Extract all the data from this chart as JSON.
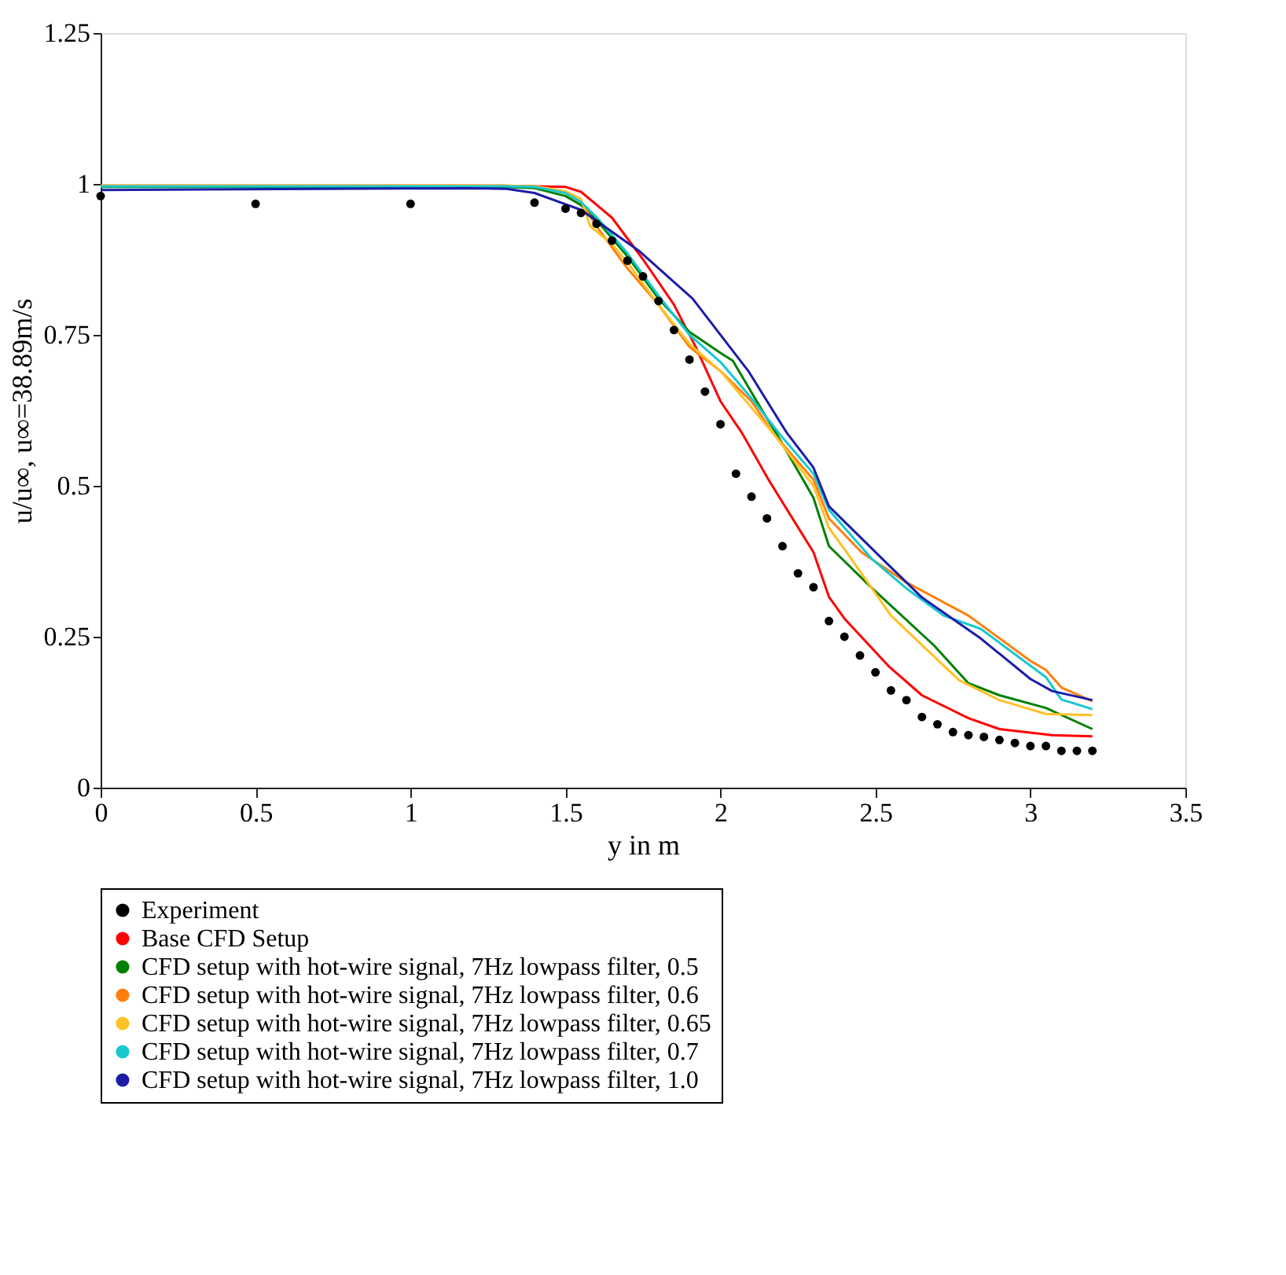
{
  "chart_data": {
    "type": "line",
    "xlabel": "y in m",
    "ylabel": "u/u∞, u∞=38.89m/s",
    "xlim": [
      0,
      3.5
    ],
    "xticks": [
      0,
      0.5,
      1,
      1.5,
      2,
      2.5,
      3,
      3.5
    ],
    "ylim": [
      0,
      1.25
    ],
    "yticks": [
      0,
      0.25,
      0.5,
      0.75,
      1,
      1.25
    ],
    "grid": false,
    "legend": "bottom",
    "line_style": "solid",
    "series": [
      {
        "name": "Experiment",
        "type": "scatter",
        "marker": "circle",
        "color": "#000000",
        "x": [
          0,
          0.5,
          1,
          1.4,
          1.5,
          1.55,
          1.6,
          1.65,
          1.7,
          1.75,
          1.8,
          1.85,
          1.9,
          1.95,
          2.0,
          2.05,
          2.1,
          2.15,
          2.2,
          2.25,
          2.3,
          2.35,
          2.4,
          2.45,
          2.5,
          2.55,
          2.6,
          2.65,
          2.7,
          2.75,
          2.8,
          2.85,
          2.9,
          2.95,
          3.0,
          3.05,
          3.1,
          3.15,
          3.2
        ],
        "values": [
          0.98,
          0.967,
          0.967,
          0.969,
          0.959,
          0.952,
          0.934,
          0.906,
          0.873,
          0.847,
          0.806,
          0.758,
          0.709,
          0.656,
          0.602,
          0.52,
          0.482,
          0.446,
          0.4,
          0.355,
          0.332,
          0.276,
          0.25,
          0.219,
          0.191,
          0.161,
          0.145,
          0.117,
          0.105,
          0.092,
          0.087,
          0.084,
          0.079,
          0.074,
          0.069,
          0.069,
          0.061,
          0.061,
          0.061
        ]
      },
      {
        "name": "Base CFD Setup",
        "color": "#ff0000",
        "x": [
          0,
          1.3,
          1.5,
          1.55,
          1.65,
          1.75,
          1.85,
          1.92,
          2.0,
          2.07,
          2.155,
          2.3,
          2.35,
          2.4,
          2.545,
          2.65,
          2.8,
          2.9,
          3.07,
          3.2
        ],
        "values": [
          0.997,
          0.997,
          0.995,
          0.987,
          0.944,
          0.875,
          0.8,
          0.73,
          0.64,
          0.587,
          0.51,
          0.39,
          0.316,
          0.28,
          0.2,
          0.153,
          0.115,
          0.097,
          0.087,
          0.085
        ]
      },
      {
        "name": "CFD setup with hot-wire signal, 7Hz lowpass filter, 0.5",
        "color": "#008000",
        "x": [
          0,
          1.3,
          1.4,
          1.5,
          1.55,
          1.6,
          1.7,
          1.8,
          1.9,
          2.0,
          2.04,
          2.14,
          2.18,
          2.3,
          2.35,
          2.4,
          2.49,
          2.69,
          2.8,
          2.9,
          3.05,
          3.2
        ],
        "values": [
          0.995,
          0.995,
          0.993,
          0.98,
          0.965,
          0.94,
          0.88,
          0.81,
          0.755,
          0.72,
          0.707,
          0.62,
          0.587,
          0.48,
          0.4,
          0.375,
          0.33,
          0.235,
          0.173,
          0.153,
          0.132,
          0.097
        ]
      },
      {
        "name": "CFD setup with hot-wire signal, 7Hz lowpass filter, 0.6",
        "color": "#ff7f0e",
        "x": [
          0,
          1.3,
          1.4,
          1.5,
          1.55,
          1.6,
          1.7,
          1.8,
          1.9,
          2.0,
          2.1,
          2.17,
          2.3,
          2.35,
          2.455,
          2.6,
          2.8,
          3.0,
          3.05,
          3.1,
          3.2
        ],
        "values": [
          0.997,
          0.997,
          0.996,
          0.985,
          0.97,
          0.93,
          0.86,
          0.8,
          0.73,
          0.69,
          0.64,
          0.587,
          0.51,
          0.446,
          0.39,
          0.34,
          0.285,
          0.21,
          0.195,
          0.166,
          0.143
        ]
      },
      {
        "name": "CFD setup with hot-wire signal, 7Hz lowpass filter, 0.65",
        "color": "#ffc125",
        "x": [
          0,
          1.3,
          1.4,
          1.5,
          1.55,
          1.58,
          1.65,
          1.7,
          1.8,
          1.9,
          2.0,
          2.17,
          2.3,
          2.35,
          2.4,
          2.55,
          2.77,
          2.9,
          3.05,
          3.2
        ],
        "values": [
          0.997,
          0.997,
          0.996,
          0.988,
          0.975,
          0.93,
          0.9,
          0.87,
          0.8,
          0.735,
          0.69,
          0.587,
          0.5,
          0.43,
          0.395,
          0.285,
          0.178,
          0.145,
          0.122,
          0.12
        ]
      },
      {
        "name": "CFD setup with hot-wire signal, 7Hz lowpass filter, 0.7",
        "color": "#17c8d0",
        "x": [
          0,
          1.3,
          1.4,
          1.5,
          1.55,
          1.6,
          1.7,
          1.8,
          1.9,
          2.0,
          2.1,
          2.2,
          2.3,
          2.35,
          2.49,
          2.6,
          2.72,
          2.84,
          3.05,
          3.1,
          3.2
        ],
        "values": [
          0.996,
          0.996,
          0.995,
          0.985,
          0.97,
          0.945,
          0.885,
          0.815,
          0.75,
          0.705,
          0.645,
          0.58,
          0.52,
          0.46,
          0.378,
          0.33,
          0.285,
          0.263,
          0.183,
          0.146,
          0.13
        ]
      },
      {
        "name": "CFD setup with hot-wire signal, 7Hz lowpass filter, 1.0",
        "color": "#1c1ca8",
        "x": [
          0,
          1.2,
          1.31,
          1.4,
          1.55,
          1.74,
          1.91,
          2.09,
          2.205,
          2.215,
          2.3,
          2.35,
          2.54,
          2.65,
          2.84,
          3.0,
          3.07,
          3.2
        ],
        "values": [
          0.99,
          0.993,
          0.992,
          0.985,
          0.957,
          0.888,
          0.81,
          0.69,
          0.595,
          0.587,
          0.53,
          0.466,
          0.37,
          0.315,
          0.247,
          0.18,
          0.16,
          0.145
        ]
      }
    ]
  }
}
